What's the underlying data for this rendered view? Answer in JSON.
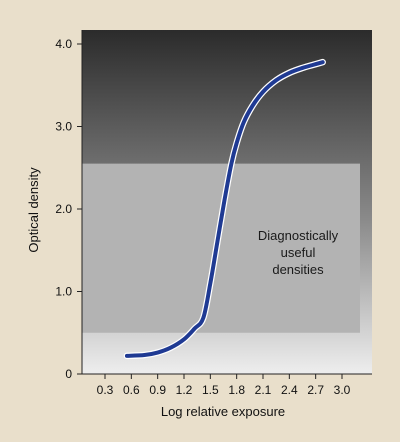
{
  "chart_data": {
    "type": "line",
    "xlabel": "Log relative exposure",
    "ylabel": "Optical density",
    "xlim": [
      0.1,
      3.3
    ],
    "ylim": [
      0,
      4.1
    ],
    "x_ticks": [
      "0.3",
      "0.6",
      "0.9",
      "1.2",
      "1.5",
      "1.8",
      "2.1",
      "2.4",
      "2.7",
      "3.0"
    ],
    "y_ticks": [
      "0",
      "1.0",
      "2.0",
      "3.0",
      "4.0"
    ],
    "grid": false,
    "series": [
      {
        "color": "#1f3a93",
        "x": [
          0.55,
          0.75,
          0.9,
          1.05,
          1.2,
          1.32,
          1.42,
          1.5,
          1.58,
          1.66,
          1.74,
          1.8,
          1.88,
          1.98,
          2.1,
          2.25,
          2.4,
          2.55,
          2.68,
          2.78
        ],
        "y": [
          0.22,
          0.23,
          0.26,
          0.32,
          0.42,
          0.55,
          0.68,
          1.1,
          1.6,
          2.1,
          2.55,
          2.8,
          3.05,
          3.25,
          3.42,
          3.56,
          3.65,
          3.71,
          3.75,
          3.78
        ]
      }
    ],
    "shaded_band": {
      "x_range": [
        0.1,
        3.2
      ],
      "y_range": [
        0.5,
        2.55
      ],
      "color": "#b3b3b3"
    },
    "annotation": {
      "lines": [
        "Diagnostically",
        "useful",
        "densities"
      ],
      "x": 2.45,
      "y": 1.95
    },
    "colors": {
      "page_background": "#e9dfcb",
      "plot_top": "#2b2b2b",
      "plot_bottom": "#eeeeee",
      "curve": "#1f3a93"
    }
  }
}
